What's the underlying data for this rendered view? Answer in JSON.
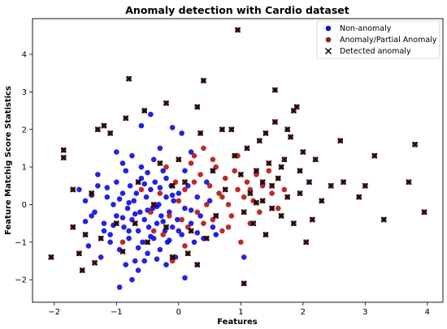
{
  "chart_data": {
    "type": "scatter",
    "title": "Anomaly detection with Cardio dataset",
    "xlabel": "Features",
    "ylabel": "Feature Matchig Score Statistics",
    "xlim": [
      -2.35,
      4.25
    ],
    "ylim": [
      -2.6,
      4.95
    ],
    "xticks": [
      -2,
      -1,
      0,
      1,
      2,
      3,
      4
    ],
    "yticks": [
      -2,
      -1,
      0,
      1,
      2,
      3,
      4
    ],
    "grid": false,
    "legend_position": "top-right",
    "colors": {
      "non_anomaly": "#1010dd",
      "anomaly": "#b81818",
      "detected": "#111111"
    },
    "series": [
      {
        "name": "Non-anomaly",
        "marker": "circle",
        "points": [
          [
            -1.6,
            0.4
          ],
          [
            -1.5,
            0.1
          ],
          [
            -1.4,
            -0.3
          ],
          [
            -1.3,
            0.5
          ],
          [
            -1.2,
            -0.5
          ],
          [
            -1.15,
            0.2
          ],
          [
            -1.1,
            -0.8
          ],
          [
            -1.05,
            0.0
          ],
          [
            -1.0,
            -0.3
          ],
          [
            -1.0,
            0.6
          ],
          [
            -0.95,
            -1.2
          ],
          [
            -0.9,
            0.3
          ],
          [
            -0.88,
            -0.6
          ],
          [
            -0.85,
            0.9
          ],
          [
            -0.82,
            -0.1
          ],
          [
            -0.8,
            -0.9
          ],
          [
            -0.78,
            0.5
          ],
          [
            -0.75,
            -0.4
          ],
          [
            -0.72,
            0.1
          ],
          [
            -0.7,
            -1.5
          ],
          [
            -0.68,
            0.3
          ],
          [
            -0.65,
            -0.7
          ],
          [
            -0.62,
            -0.2
          ],
          [
            -0.6,
            0.7
          ],
          [
            -0.58,
            -1.0
          ],
          [
            -0.55,
            -0.4
          ],
          [
            -0.52,
            0.2
          ],
          [
            -0.5,
            -1.3
          ],
          [
            -0.48,
            -0.6
          ],
          [
            -0.45,
            0.4
          ],
          [
            -0.42,
            -0.1
          ],
          [
            -0.4,
            -0.9
          ],
          [
            -0.38,
            0.6
          ],
          [
            -0.35,
            -0.5
          ],
          [
            -0.32,
            0.0
          ],
          [
            -0.3,
            -1.2
          ],
          [
            -0.28,
            -0.3
          ],
          [
            -0.25,
            0.9
          ],
          [
            -0.22,
            -0.7
          ],
          [
            -0.2,
            0.2
          ],
          [
            -0.18,
            -1.0
          ],
          [
            -0.15,
            -0.2
          ],
          [
            -0.12,
            0.5
          ],
          [
            -0.1,
            -0.6
          ],
          [
            -0.08,
            0.1
          ],
          [
            -0.05,
            -1.4
          ],
          [
            -0.02,
            -0.4
          ],
          [
            0.0,
            0.3
          ],
          [
            0.05,
            -0.8
          ],
          [
            0.1,
            -0.1
          ],
          [
            0.15,
            0.5
          ],
          [
            0.2,
            -0.5
          ],
          [
            0.25,
            -1.0
          ],
          [
            0.3,
            0.2
          ],
          [
            0.35,
            -0.3
          ],
          [
            0.4,
            -0.9
          ],
          [
            0.5,
            0.1
          ],
          [
            0.55,
            -0.6
          ],
          [
            0.6,
            -0.8
          ],
          [
            0.45,
            0.6
          ],
          [
            -0.6,
            2.1
          ],
          [
            -0.45,
            2.4
          ],
          [
            -0.3,
            1.5
          ],
          [
            -0.1,
            2.05
          ],
          [
            0.05,
            1.9
          ],
          [
            -0.75,
            1.3
          ],
          [
            -1.0,
            1.4
          ],
          [
            -1.3,
            0.8
          ],
          [
            -0.9,
            1.1
          ],
          [
            0.2,
            1.4
          ],
          [
            -1.45,
            -1.1
          ],
          [
            -1.25,
            -1.4
          ],
          [
            -1.1,
            -1.0
          ],
          [
            -0.85,
            -1.6
          ],
          [
            -0.65,
            -1.75
          ],
          [
            -0.55,
            -1.5
          ],
          [
            -0.35,
            -1.45
          ],
          [
            -0.2,
            -1.6
          ],
          [
            0.1,
            -1.95
          ],
          [
            1.05,
            -1.4
          ],
          [
            -0.75,
            -2.0
          ],
          [
            -0.95,
            -2.2
          ],
          [
            -1.35,
            -0.2
          ],
          [
            -1.2,
            -0.7
          ],
          [
            -0.6,
            1.0
          ],
          [
            -0.4,
            1.2
          ],
          [
            -0.2,
            0.7
          ],
          [
            0.1,
            0.9
          ],
          [
            -0.5,
            0.85
          ],
          [
            -0.8,
            0.05
          ],
          [
            -1.05,
            -0.55
          ],
          [
            -0.7,
            -0.25
          ],
          [
            -0.45,
            -0.85
          ],
          [
            -0.15,
            -0.95
          ],
          [
            -0.3,
            0.45
          ],
          [
            0.0,
            -0.7
          ],
          [
            0.2,
            -0.15
          ],
          [
            -0.9,
            -0.35
          ],
          [
            -1.15,
            0.45
          ],
          [
            -0.65,
            -1.15
          ],
          [
            -0.55,
            0.55
          ],
          [
            -0.25,
            -0.45
          ],
          [
            -0.1,
            0.25
          ],
          [
            -0.35,
            -0.05
          ],
          [
            -0.8,
            -0.7
          ],
          [
            -0.95,
            0.15
          ],
          [
            0.3,
            -0.75
          ],
          [
            -1.5,
            -0.45
          ],
          [
            -1.4,
            0.25
          ],
          [
            -0.5,
            -0.15
          ]
        ]
      },
      {
        "name": "Anomaly/Partial Anomaly",
        "marker": "circle",
        "points": [
          [
            -0.2,
            1.0
          ],
          [
            -0.05,
            0.6
          ],
          [
            0.1,
            0.4
          ],
          [
            0.2,
            1.1
          ],
          [
            0.3,
            -0.2
          ],
          [
            0.35,
            0.8
          ],
          [
            0.4,
            1.5
          ],
          [
            0.45,
            0.0
          ],
          [
            0.5,
            0.5
          ],
          [
            0.55,
            -0.4
          ],
          [
            0.6,
            1.0
          ],
          [
            0.65,
            0.3
          ],
          [
            0.7,
            -0.7
          ],
          [
            0.75,
            0.7
          ],
          [
            0.8,
            0.0
          ],
          [
            0.85,
            -0.3
          ],
          [
            0.9,
            0.9
          ],
          [
            0.95,
            0.4
          ],
          [
            1.0,
            -1.0
          ],
          [
            1.05,
            0.2
          ],
          [
            1.1,
            0.6
          ],
          [
            1.15,
            -0.5
          ],
          [
            1.2,
            0.1
          ],
          [
            1.25,
            0.8
          ],
          [
            1.3,
            -0.2
          ],
          [
            1.35,
            0.5
          ],
          [
            1.45,
            0.9
          ],
          [
            1.5,
            0.3
          ],
          [
            1.6,
            -0.1
          ],
          [
            1.7,
            0.4
          ],
          [
            -0.15,
            -0.3
          ],
          [
            0.0,
            0.1
          ],
          [
            0.15,
            -0.6
          ],
          [
            -0.3,
            0.3
          ],
          [
            0.25,
            0.6
          ],
          [
            0.05,
            -0.4
          ],
          [
            -0.4,
            -0.7
          ],
          [
            -0.1,
            -1.5
          ],
          [
            0.4,
            -0.5
          ],
          [
            0.7,
            0.2
          ],
          [
            -0.9,
            -1.0
          ],
          [
            -0.6,
            0.4
          ],
          [
            -0.45,
            -0.2
          ],
          [
            0.25,
            1.3
          ],
          [
            0.55,
            1.2
          ],
          [
            0.1,
            -1.1
          ],
          [
            -0.25,
            -0.8
          ],
          [
            0.8,
            -0.6
          ],
          [
            0.95,
            1.3
          ],
          [
            1.15,
            0.4
          ]
        ]
      },
      {
        "name": "Detected anomaly",
        "marker": "x",
        "points": [
          [
            0.9,
            1.3
          ],
          [
            1.0,
            0.8
          ],
          [
            1.05,
            -0.2
          ],
          [
            1.1,
            1.5
          ],
          [
            1.15,
            0.3
          ],
          [
            1.2,
            -0.5
          ],
          [
            1.25,
            0.9
          ],
          [
            1.3,
            1.7
          ],
          [
            1.35,
            0.1
          ],
          [
            1.4,
            -0.8
          ],
          [
            1.45,
            1.1
          ],
          [
            1.5,
            0.5
          ],
          [
            1.55,
            2.2
          ],
          [
            1.6,
            0.7
          ],
          [
            1.65,
            -0.3
          ],
          [
            1.7,
            1.2
          ],
          [
            1.75,
            0.2
          ],
          [
            1.8,
            1.8
          ],
          [
            1.85,
            -0.5
          ],
          [
            1.9,
            2.6
          ],
          [
            1.95,
            0.9
          ],
          [
            2.0,
            1.4
          ],
          [
            2.05,
            -1.0
          ],
          [
            2.1,
            0.6
          ],
          [
            2.15,
            -0.4
          ],
          [
            2.3,
            0.1
          ],
          [
            2.45,
            0.5
          ],
          [
            2.6,
            1.7
          ],
          [
            2.65,
            0.6
          ],
          [
            2.9,
            0.2
          ],
          [
            3.0,
            0.5
          ],
          [
            3.15,
            1.3
          ],
          [
            3.3,
            -0.4
          ],
          [
            3.7,
            0.6
          ],
          [
            3.8,
            1.6
          ],
          [
            3.95,
            -0.2
          ],
          [
            0.95,
            4.65
          ],
          [
            0.4,
            3.3
          ],
          [
            1.05,
            -2.1
          ],
          [
            0.3,
            2.6
          ],
          [
            1.85,
            2.5
          ],
          [
            1.55,
            3.05
          ],
          [
            1.75,
            2.0
          ],
          [
            1.65,
            1.0
          ],
          [
            1.25,
            0.05
          ],
          [
            1.4,
            1.9
          ],
          [
            1.5,
            -0.1
          ],
          [
            1.35,
            0.6
          ],
          [
            1.95,
            0.3
          ],
          [
            2.2,
            1.2
          ],
          [
            -1.7,
            0.4
          ],
          [
            -1.5,
            -0.8
          ],
          [
            -1.4,
            0.3
          ],
          [
            -1.3,
            2.0
          ],
          [
            -1.2,
            2.1
          ],
          [
            -1.1,
            1.9
          ],
          [
            -0.85,
            2.3
          ],
          [
            -0.8,
            3.35
          ],
          [
            -0.55,
            2.5
          ],
          [
            -0.2,
            2.7
          ],
          [
            -1.85,
            1.45
          ],
          [
            -1.85,
            1.25
          ],
          [
            -2.05,
            -1.4
          ],
          [
            -1.7,
            -0.6
          ],
          [
            -1.6,
            -1.3
          ],
          [
            -1.55,
            -1.75
          ],
          [
            -1.35,
            -1.55
          ],
          [
            -1.25,
            -0.9
          ],
          [
            -1.0,
            -0.5
          ],
          [
            -0.9,
            -1.25
          ],
          [
            -0.7,
            -0.5
          ],
          [
            -0.65,
            0.6
          ],
          [
            -0.5,
            -1.0
          ],
          [
            -0.4,
            0.0
          ],
          [
            -0.3,
            1.1
          ],
          [
            -0.2,
            -0.6
          ],
          [
            -0.1,
            0.5
          ],
          [
            0.0,
            1.2
          ],
          [
            0.15,
            -1.3
          ],
          [
            0.3,
            -1.6
          ],
          [
            0.45,
            -0.9
          ],
          [
            0.55,
            0.9
          ],
          [
            0.7,
            2.0
          ],
          [
            0.85,
            2.0
          ],
          [
            0.35,
            1.9
          ],
          [
            -0.1,
            -1.4
          ],
          [
            0.1,
            0.6
          ],
          [
            0.6,
            -0.3
          ],
          [
            0.75,
            0.4
          ],
          [
            0.2,
            -0.7
          ]
        ]
      }
    ]
  }
}
